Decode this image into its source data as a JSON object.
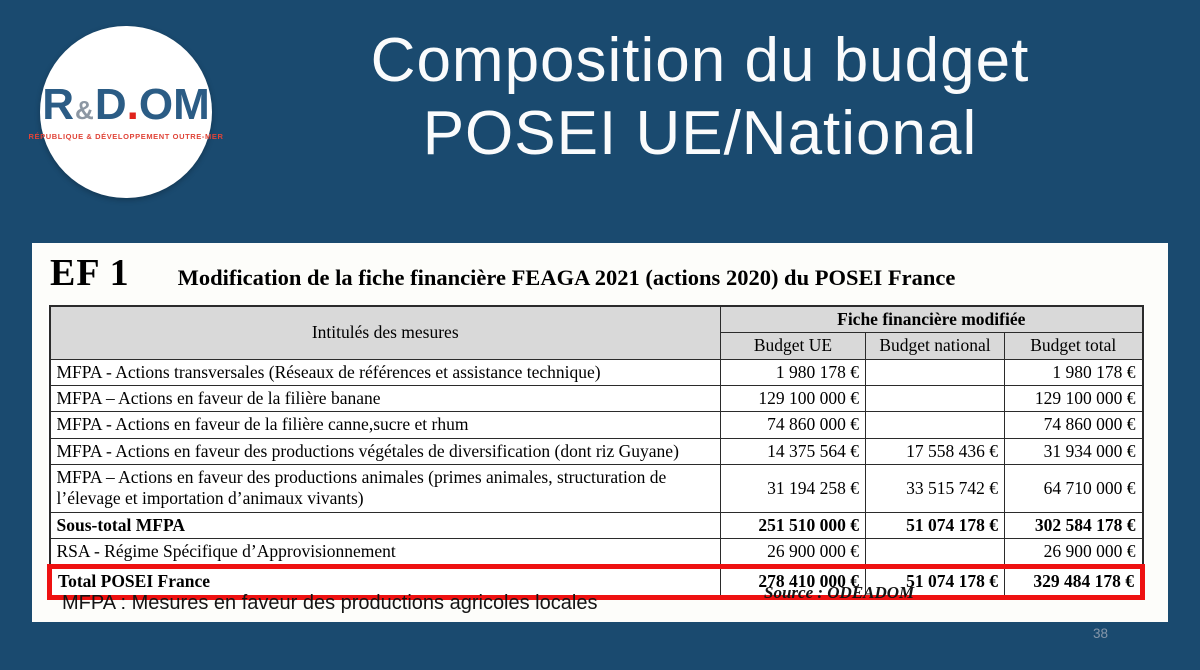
{
  "slide": {
    "title_line1": "Composition du budget",
    "title_line2": "POSEI UE/National",
    "page_number": "38"
  },
  "logo": {
    "part_r": "R",
    "part_amp": "&",
    "part_d": "D",
    "part_dot": ".",
    "part_om": "OM",
    "subtitle": "RÉPUBLIQUE & DÉVELOPPEMENT OUTRE-MER"
  },
  "panel": {
    "ef_label": "EF 1",
    "heading": "Modification de la fiche financière FEAGA 2021 (actions 2020) du POSEI France",
    "footnote": "MFPA : Mesures en faveur des productions agricoles locales",
    "source": "Source : ODEADOM"
  },
  "table": {
    "measures_header": "Intitulés des mesures",
    "group_header": "Fiche financière modifiée",
    "columns": [
      "Budget UE",
      "Budget national",
      "Budget total"
    ],
    "rows": [
      {
        "label": "MFPA - Actions transversales (Réseaux de références et assistance technique)",
        "budget_ue": "1 980 178 €",
        "budget_national": "",
        "budget_total": "1 980 178 €"
      },
      {
        "label": "MFPA – Actions en faveur de la filière banane",
        "budget_ue": "129 100 000 €",
        "budget_national": "",
        "budget_total": "129 100 000 €"
      },
      {
        "label": "MFPA - Actions en faveur de la filière canne,sucre et rhum",
        "budget_ue": "74 860 000 €",
        "budget_national": "",
        "budget_total": "74 860 000 €"
      },
      {
        "label": "MFPA - Actions en faveur des productions végétales de diversification (dont riz Guyane)",
        "budget_ue": "14 375 564 €",
        "budget_national": "17 558 436 €",
        "budget_total": "31 934 000 €"
      },
      {
        "label": "MFPA – Actions en faveur des productions animales (primes animales, structuration de l’élevage et importation d’animaux vivants)",
        "budget_ue": "31 194 258 €",
        "budget_national": "33 515 742 €",
        "budget_total": "64 710 000 €"
      },
      {
        "label": "Sous-total MFPA",
        "budget_ue": "251 510 000 €",
        "budget_national": "51 074 178 €",
        "budget_total": "302 584 178 €",
        "emphasis": "bold"
      },
      {
        "label": "RSA - Régime Spécifique d’Approvisionnement",
        "budget_ue": "26 900 000 €",
        "budget_national": "",
        "budget_total": "26 900 000 €"
      },
      {
        "label": "Total POSEI France",
        "budget_ue": "278 410 000 €",
        "budget_national": "51 074 178 €",
        "budget_total": "329 484 178 €",
        "emphasis": "bold",
        "highlight": "red-box"
      }
    ]
  },
  "colors": {
    "background": "#1a4a6f",
    "panel": "#fdfdfa",
    "table_header_bg": "#d9d9d9",
    "highlight_red": "#ee1111",
    "logo_blue": "#2b5c85",
    "logo_red": "#e04438",
    "page_number_gray": "#8496a9"
  }
}
